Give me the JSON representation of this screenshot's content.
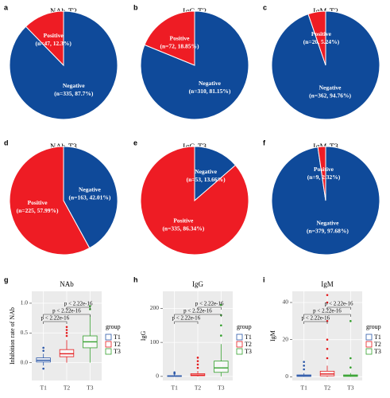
{
  "chart_data": [
    {
      "type": "pie",
      "panel": "a",
      "title": "NAb-T2",
      "categories": [
        "Negative",
        "Positive"
      ],
      "values": [
        87.7,
        12.3
      ],
      "value_labels": [
        "(n=335, 87.7%)",
        "(n=47, 12.3%)"
      ],
      "colors": [
        "#0f4a9a",
        "#ee1c24"
      ]
    },
    {
      "type": "pie",
      "panel": "b",
      "title": "IgG-T2",
      "categories": [
        "Negative",
        "Positive"
      ],
      "values": [
        81.15,
        18.85
      ],
      "value_labels": [
        "(n=310, 81.15%)",
        "(n=72, 18.85%)"
      ],
      "colors": [
        "#0f4a9a",
        "#ee1c24"
      ]
    },
    {
      "type": "pie",
      "panel": "c",
      "title": "IgM-T2",
      "categories": [
        "Negative",
        "Positive"
      ],
      "values": [
        94.76,
        5.24
      ],
      "value_labels": [
        "(n=362, 94.76%)",
        "(n=20, 5.24%)"
      ],
      "colors": [
        "#0f4a9a",
        "#ee1c24"
      ]
    },
    {
      "type": "pie",
      "panel": "d",
      "title": "NAb-T3",
      "categories": [
        "Negative",
        "Positive"
      ],
      "values": [
        42.01,
        57.99
      ],
      "value_labels": [
        "(n=163, 42.01%)",
        "(n=225, 57.99%)"
      ],
      "colors": [
        "#0f4a9a",
        "#ee1c24"
      ]
    },
    {
      "type": "pie",
      "panel": "e",
      "title": "IgG-T3",
      "categories": [
        "Negative",
        "Positive"
      ],
      "values": [
        13.66,
        86.34
      ],
      "value_labels": [
        "(n=53, 13.66%)",
        "(n=335, 86.34%)"
      ],
      "colors": [
        "#0f4a9a",
        "#ee1c24"
      ]
    },
    {
      "type": "pie",
      "panel": "f",
      "title": "IgM-T3",
      "categories": [
        "Negative",
        "Positive"
      ],
      "values": [
        97.68,
        2.32
      ],
      "value_labels": [
        "(n=379, 97.68%)",
        "(n=9, 2.32%)"
      ],
      "colors": [
        "#0f4a9a",
        "#ee1c24"
      ]
    },
    {
      "type": "box",
      "panel": "g",
      "title": "NAb",
      "y_label": "Inhibition rate of NAb",
      "categories": [
        "T1",
        "T2",
        "T3"
      ],
      "ylim": [
        -0.3,
        1.2
      ],
      "yticks": [
        {
          "value": 0,
          "label": "0.0"
        },
        {
          "value": 0.5,
          "label": "0.5"
        },
        {
          "value": 1,
          "label": "1.0"
        }
      ],
      "legend_title": "group",
      "comparisons": [
        "p < 2.22e-16",
        "p < 2.22e-16",
        "p < 2.22e-16"
      ],
      "series": [
        {
          "name": "T1",
          "color": "#2b57a8",
          "low": -0.05,
          "q1": 0.01,
          "median": 0.04,
          "q3": 0.08,
          "high": 0.15,
          "outliers": [
            0.2,
            0.25,
            -0.1
          ]
        },
        {
          "name": "T2",
          "color": "#e41a1c",
          "low": 0.0,
          "q1": 0.1,
          "median": 0.15,
          "q3": 0.22,
          "high": 0.38,
          "outliers": [
            0.45,
            0.5,
            0.55,
            0.6
          ]
        },
        {
          "name": "T3",
          "color": "#33a02c",
          "low": 0.0,
          "q1": 0.25,
          "median": 0.35,
          "q3": 0.45,
          "high": 0.8,
          "outliers": [
            0.9,
            0.95
          ]
        }
      ]
    },
    {
      "type": "box",
      "panel": "h",
      "title": "IgG",
      "y_label": "IgG",
      "categories": [
        "T1",
        "T2",
        "T3"
      ],
      "ylim": [
        -12,
        250
      ],
      "yticks": [
        0,
        100,
        200
      ],
      "legend_title": "group",
      "comparisons": [
        "p < 2.22e-16",
        "p < 2.22e-16",
        "p < 2.22e-16"
      ],
      "series": [
        {
          "name": "T1",
          "color": "#2b57a8",
          "low": 0,
          "q1": 0,
          "median": 1,
          "q3": 2,
          "high": 5,
          "outliers": [
            8,
            12
          ]
        },
        {
          "name": "T2",
          "color": "#e41a1c",
          "low": 0,
          "q1": 2,
          "median": 4,
          "q3": 8,
          "high": 16,
          "outliers": [
            25,
            35,
            45,
            55
          ]
        },
        {
          "name": "T3",
          "color": "#33a02c",
          "low": 0,
          "q1": 12,
          "median": 25,
          "q3": 45,
          "high": 95,
          "outliers": [
            120,
            150,
            180,
            210
          ]
        }
      ]
    },
    {
      "type": "box",
      "panel": "i",
      "title": "IgM",
      "y_label": "IgM",
      "categories": [
        "T1",
        "T2",
        "T3"
      ],
      "ylim": [
        -2,
        46
      ],
      "yticks": [
        0,
        20,
        40
      ],
      "legend_title": "group",
      "comparisons": [
        "p < 2.22e-16",
        "p < 2.22e-16",
        "p < 2.22e-16"
      ],
      "series": [
        {
          "name": "T1",
          "color": "#2b57a8",
          "low": 0,
          "q1": 0.2,
          "median": 0.5,
          "q3": 1,
          "high": 2,
          "outliers": [
            4,
            6,
            8
          ]
        },
        {
          "name": "T2",
          "color": "#e41a1c",
          "low": 0,
          "q1": 0.5,
          "median": 1.5,
          "q3": 3,
          "high": 6,
          "outliers": [
            10,
            15,
            20,
            30,
            40,
            44
          ]
        },
        {
          "name": "T3",
          "color": "#33a02c",
          "low": 0,
          "q1": 0.2,
          "median": 0.5,
          "q3": 1,
          "high": 2,
          "outliers": [
            5,
            10,
            30
          ]
        }
      ]
    }
  ]
}
